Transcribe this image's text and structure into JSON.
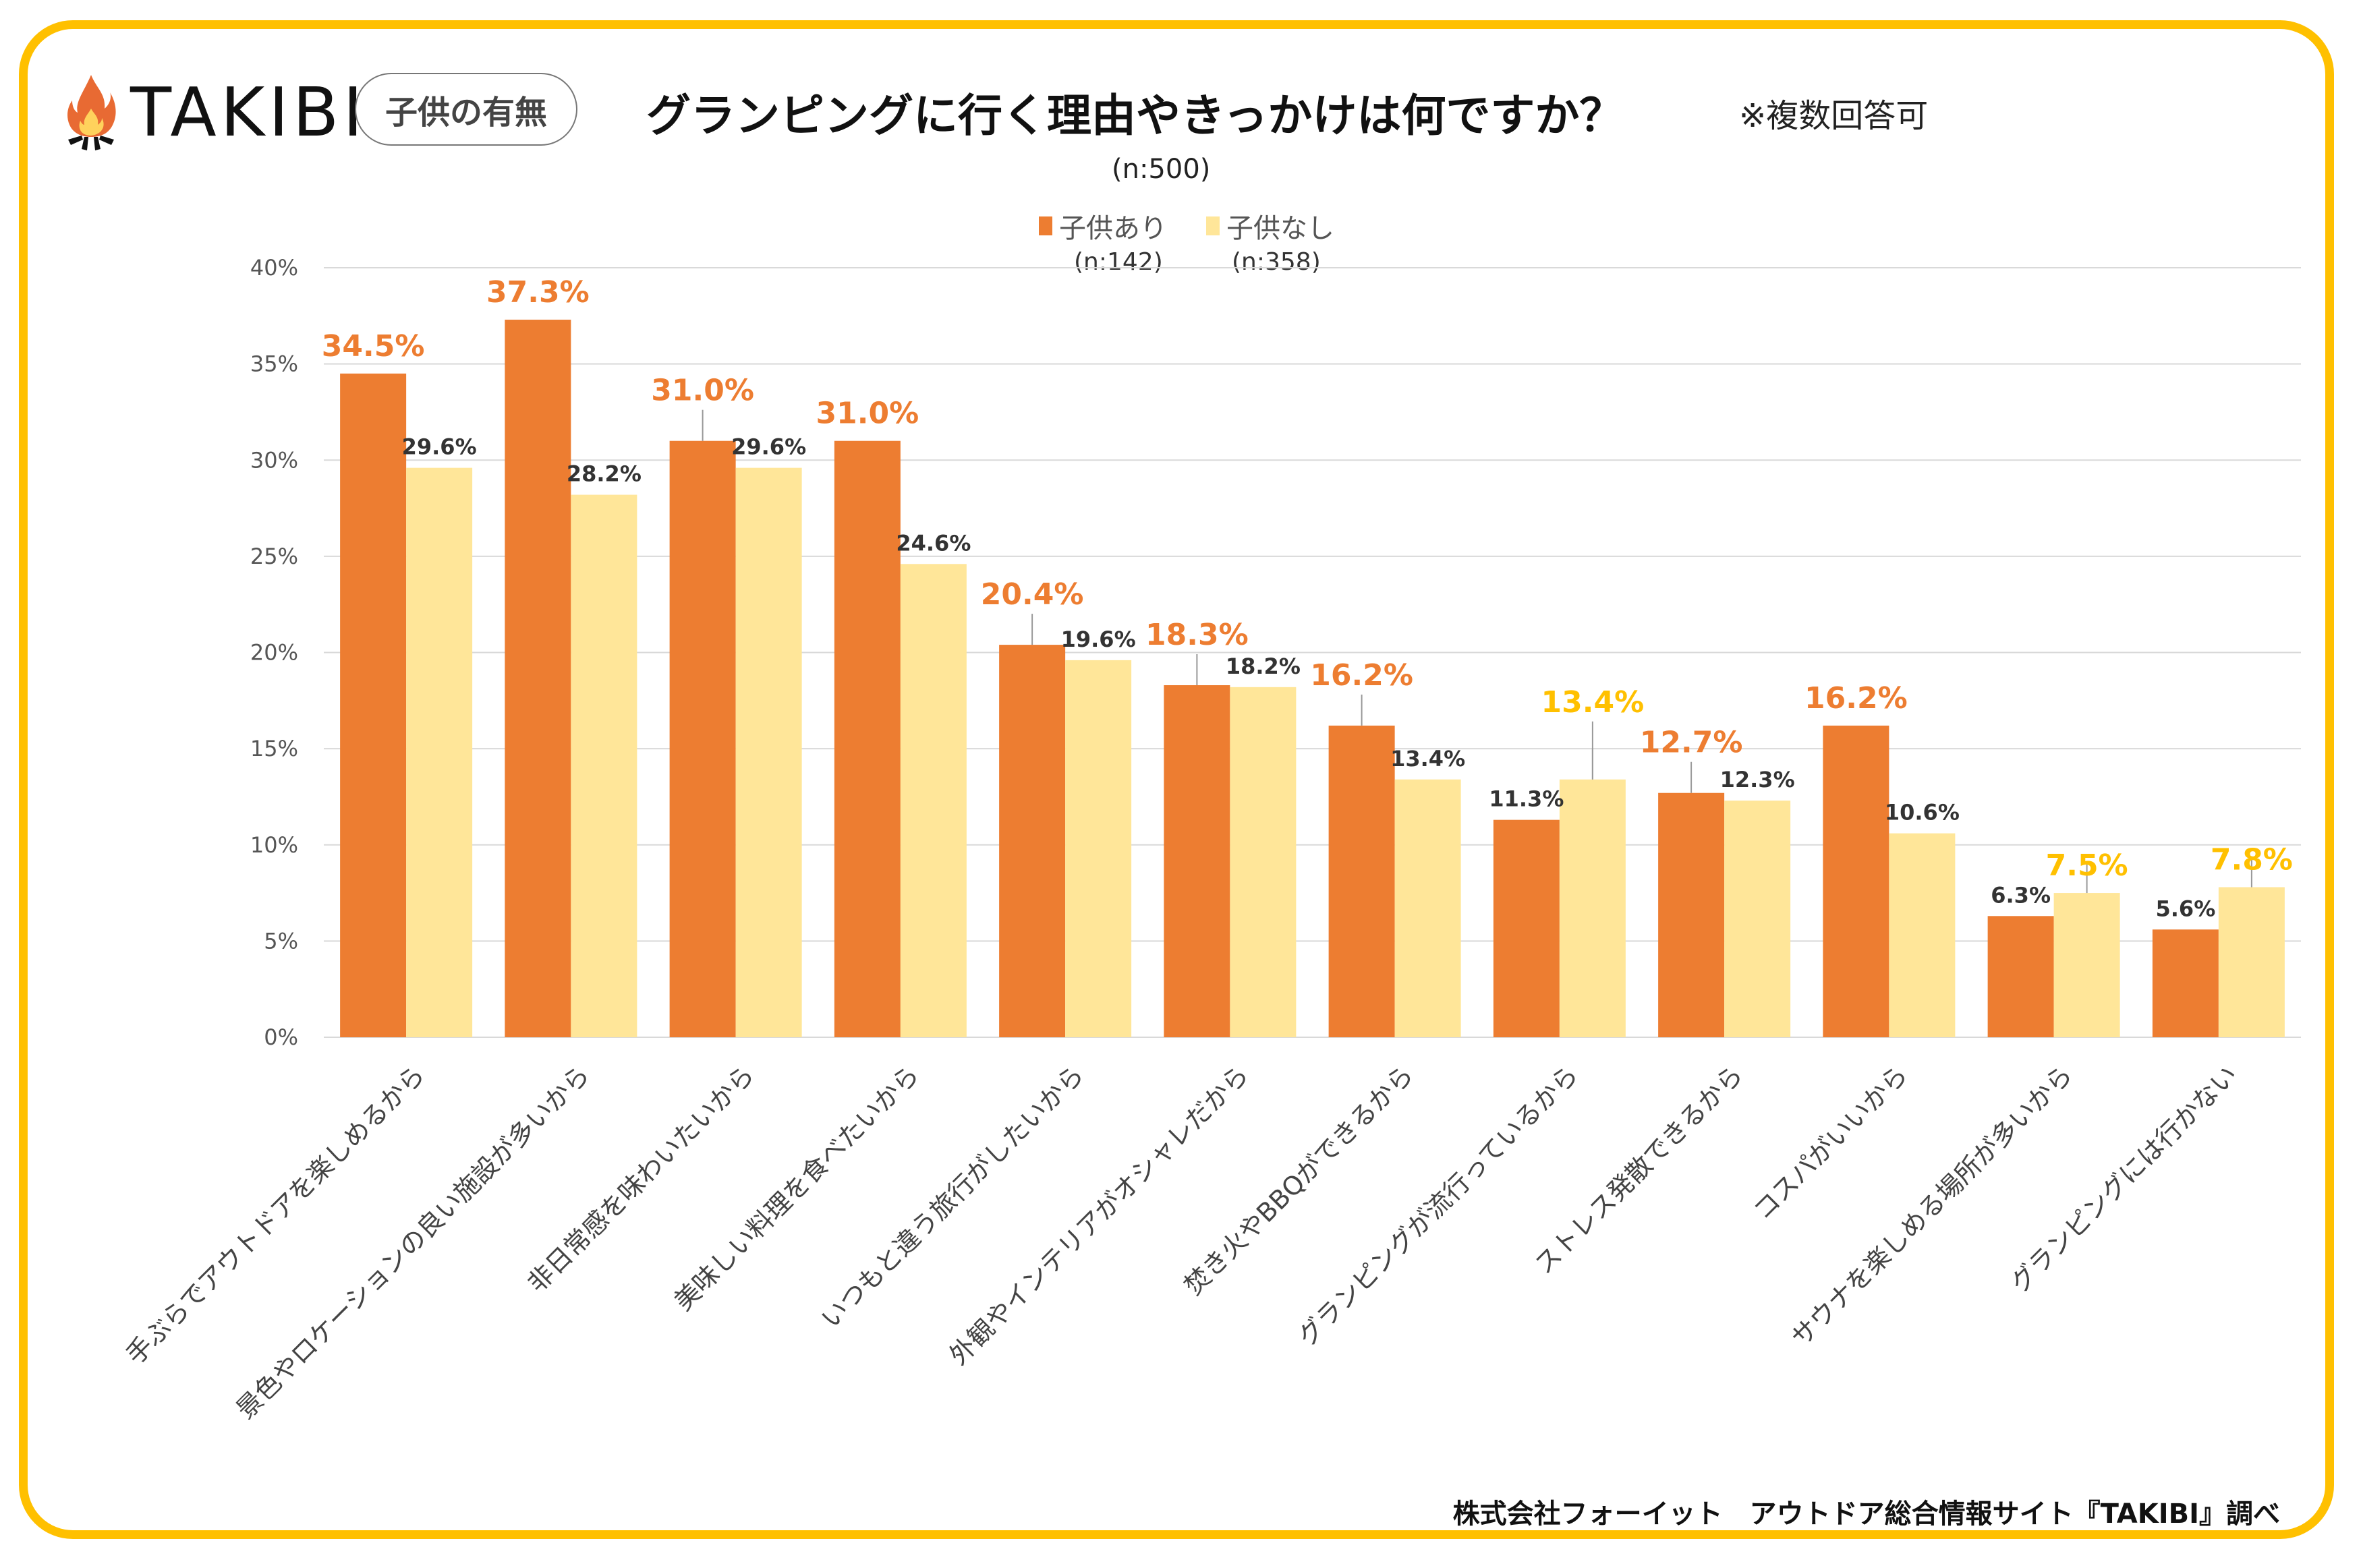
{
  "brand": {
    "logo_text": "TAKIBI",
    "logo_icon": "campfire-icon",
    "tag": "子供の有無"
  },
  "header": {
    "title": "グランピングに行く理由やきっかけは何ですか？",
    "note": "※複数回答可",
    "sample_size": "(n:500)"
  },
  "legend": [
    {
      "label": "子供あり",
      "n": "(n:142)"
    },
    {
      "label": "子供なし",
      "n": "(n:358)"
    }
  ],
  "credit": "株式会社フォーイット　アウトドア総合情報サイト『TAKIBI』調べ",
  "colors": {
    "frame": "#FFC000",
    "with_children": "#ED7D31",
    "without_children": "#FFE699",
    "highlight_orange": "#ED7D31",
    "highlight_yellow": "#FFC000",
    "grid": "#D9D9D9"
  },
  "chart_data": {
    "type": "bar",
    "title": "グランピングに行く理由やきっかけは何ですか？",
    "subtitle": "(n:500)",
    "xlabel": "",
    "ylabel": "",
    "ylim": [
      0,
      40
    ],
    "yticks": [
      0,
      5,
      10,
      15,
      20,
      25,
      30,
      35,
      40
    ],
    "ytick_labels": [
      "0%",
      "5%",
      "10%",
      "15%",
      "20%",
      "25%",
      "30%",
      "35%",
      "40%"
    ],
    "grid": true,
    "legend_position": "top-center",
    "categories": [
      "手ぶらでアウトドアを楽しめるから",
      "景色やロケーションの良い施設が多いから",
      "非日常感を味わいたいから",
      "美味しい料理を食べたいから",
      "いつもと違う旅行がしたいから",
      "外観やインテリアがオシャレだから",
      "焚き火やBBQができるから",
      "グランピングが流行っているから",
      "ストレス発散できるから",
      "コスパがいいから",
      "サウナを楽しめる場所が多いから",
      "グランピングには行かない"
    ],
    "series": [
      {
        "name": "子供あり",
        "n": 142,
        "values": [
          34.5,
          37.3,
          31.0,
          31.0,
          20.4,
          18.3,
          16.2,
          11.3,
          12.7,
          16.2,
          6.3,
          5.6
        ],
        "labels": [
          "34.5%",
          "37.3%",
          "31.0%",
          "31.0%",
          "20.4%",
          "18.3%",
          "16.2%",
          "11.3%",
          "12.7%",
          "16.2%",
          "6.3%",
          "5.6%"
        ],
        "highlighted": [
          true,
          true,
          true,
          true,
          true,
          true,
          true,
          false,
          true,
          true,
          false,
          false
        ]
      },
      {
        "name": "子供なし",
        "n": 358,
        "values": [
          29.6,
          28.2,
          29.6,
          24.6,
          19.6,
          18.2,
          13.4,
          13.4,
          12.3,
          10.6,
          7.5,
          7.8
        ],
        "labels": [
          "29.6%",
          "28.2%",
          "29.6%",
          "24.6%",
          "19.6%",
          "18.2%",
          "13.4%",
          "13.4%",
          "12.3%",
          "10.6%",
          "7.5%",
          "7.8%"
        ],
        "highlighted": [
          false,
          false,
          false,
          false,
          false,
          false,
          false,
          true,
          false,
          false,
          true,
          true
        ]
      }
    ]
  }
}
